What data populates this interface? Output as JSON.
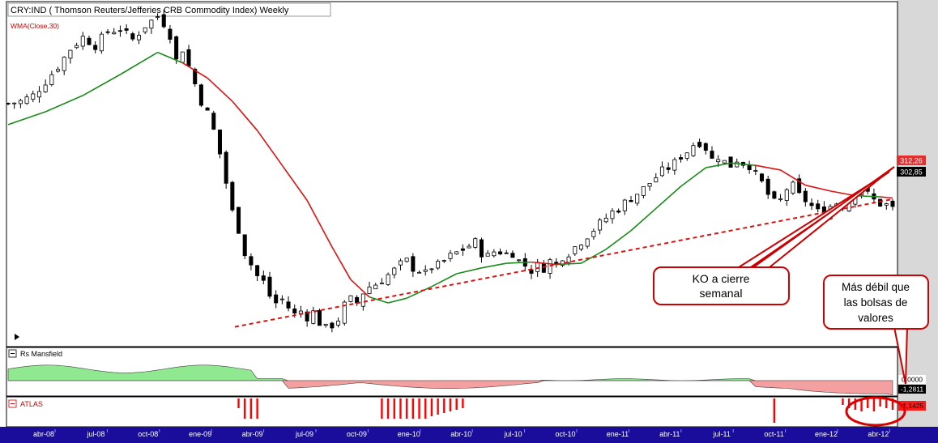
{
  "chart_data": {
    "type": "candlestick",
    "title": "CRY:IND ( Thomson Reuters/Jefferies CRB Commodity Index) Weekly",
    "indicator_label": "WMA(Close,30)",
    "ylim": [
      190,
      475
    ],
    "x_tick_labels": [
      "abr-08",
      "jul-08",
      "oct-08",
      "ene-09",
      "abr-09",
      "jul-09",
      "oct-09",
      "ene-10",
      "abr-10",
      "jul-10",
      "oct-10",
      "ene-11",
      "abr-11",
      "jul-11",
      "oct-11",
      "ene-12",
      "abr-12"
    ],
    "price_tags": {
      "wma": "312,26",
      "last": "302,85"
    },
    "close_series": [
      [
        0,
        393
      ],
      [
        2,
        395
      ],
      [
        4,
        400
      ],
      [
        6,
        412
      ],
      [
        8,
        425
      ],
      [
        10,
        440
      ],
      [
        12,
        450
      ],
      [
        14,
        443
      ],
      [
        16,
        455
      ],
      [
        18,
        457
      ],
      [
        20,
        448
      ],
      [
        22,
        460
      ],
      [
        24,
        468
      ],
      [
        25,
        462
      ],
      [
        26,
        452
      ],
      [
        27,
        430
      ],
      [
        28,
        440
      ],
      [
        29,
        425
      ],
      [
        30,
        410
      ],
      [
        31,
        395
      ],
      [
        32,
        385
      ],
      [
        33,
        370
      ],
      [
        34,
        350
      ],
      [
        35,
        325
      ],
      [
        36,
        300
      ],
      [
        37,
        285
      ],
      [
        38,
        265
      ],
      [
        39,
        255
      ],
      [
        40,
        245
      ],
      [
        41,
        240
      ],
      [
        42,
        228
      ],
      [
        43,
        222
      ],
      [
        44,
        225
      ],
      [
        45,
        218
      ],
      [
        46,
        212
      ],
      [
        47,
        215
      ],
      [
        48,
        210
      ],
      [
        49,
        214
      ],
      [
        50,
        205
      ],
      [
        51,
        200
      ],
      [
        52,
        203
      ],
      [
        53,
        208
      ],
      [
        54,
        220
      ],
      [
        55,
        225
      ],
      [
        56,
        222
      ],
      [
        57,
        231
      ],
      [
        58,
        236
      ],
      [
        59,
        238
      ],
      [
        60,
        242
      ],
      [
        61,
        246
      ],
      [
        62,
        250
      ],
      [
        63,
        255
      ],
      [
        64,
        258
      ],
      [
        65,
        252
      ],
      [
        66,
        250
      ],
      [
        67,
        247
      ],
      [
        68,
        253
      ],
      [
        69,
        254
      ],
      [
        70,
        258
      ],
      [
        71,
        262
      ],
      [
        72,
        265
      ],
      [
        73,
        268
      ],
      [
        74,
        271
      ],
      [
        75,
        274
      ],
      [
        76,
        265
      ],
      [
        77,
        262
      ],
      [
        78,
        266
      ],
      [
        79,
        266
      ],
      [
        80,
        264
      ],
      [
        81,
        265
      ],
      [
        82,
        258
      ],
      [
        83,
        254
      ],
      [
        84,
        250
      ],
      [
        85,
        254
      ],
      [
        86,
        252
      ],
      [
        87,
        258
      ],
      [
        88,
        255
      ],
      [
        89,
        262
      ],
      [
        90,
        265
      ],
      [
        91,
        270
      ],
      [
        92,
        275
      ],
      [
        93,
        280
      ],
      [
        94,
        285
      ],
      [
        95,
        290
      ],
      [
        96,
        295
      ],
      [
        97,
        300
      ],
      [
        98,
        303
      ],
      [
        99,
        308
      ],
      [
        100,
        312
      ],
      [
        101,
        316
      ],
      [
        102,
        320
      ],
      [
        103,
        325
      ],
      [
        104,
        330
      ],
      [
        105,
        335
      ],
      [
        106,
        338
      ],
      [
        107,
        342
      ],
      [
        108,
        348
      ],
      [
        109,
        352
      ],
      [
        110,
        358
      ],
      [
        111,
        360
      ],
      [
        112,
        355
      ],
      [
        113,
        345
      ],
      [
        114,
        348
      ],
      [
        115,
        343
      ],
      [
        116,
        340
      ],
      [
        117,
        345
      ],
      [
        118,
        342
      ],
      [
        119,
        340
      ],
      [
        120,
        332
      ],
      [
        121,
        325
      ],
      [
        122,
        315
      ],
      [
        123,
        308
      ],
      [
        124,
        310
      ],
      [
        125,
        320
      ],
      [
        126,
        322
      ],
      [
        127,
        314
      ],
      [
        128,
        310
      ],
      [
        129,
        305
      ],
      [
        130,
        300
      ],
      [
        131,
        298
      ],
      [
        132,
        305
      ],
      [
        133,
        308
      ],
      [
        134,
        306
      ],
      [
        135,
        310
      ],
      [
        136,
        318
      ],
      [
        137,
        320
      ],
      [
        138,
        315
      ],
      [
        139,
        310
      ],
      [
        140,
        307
      ],
      [
        141,
        306
      ],
      [
        142,
        303
      ]
    ],
    "wma_series": [
      [
        0,
        375
      ],
      [
        6,
        386
      ],
      [
        12,
        400
      ],
      [
        18,
        418
      ],
      [
        24,
        437
      ],
      [
        28,
        428
      ],
      [
        32,
        415
      ],
      [
        36,
        395
      ],
      [
        40,
        370
      ],
      [
        44,
        340
      ],
      [
        48,
        310
      ],
      [
        52,
        270
      ],
      [
        55,
        242
      ],
      [
        58,
        227
      ],
      [
        61,
        222
      ],
      [
        64,
        226
      ],
      [
        68,
        236
      ],
      [
        72,
        247
      ],
      [
        76,
        252
      ],
      [
        80,
        256
      ],
      [
        84,
        257
      ],
      [
        88,
        255
      ],
      [
        92,
        256
      ],
      [
        96,
        268
      ],
      [
        100,
        284
      ],
      [
        104,
        303
      ],
      [
        108,
        322
      ],
      [
        112,
        338
      ],
      [
        116,
        342
      ],
      [
        120,
        340
      ],
      [
        124,
        336
      ],
      [
        128,
        323
      ],
      [
        132,
        318
      ],
      [
        136,
        314
      ],
      [
        140,
        313
      ],
      [
        142,
        312
      ]
    ],
    "trendline": [
      [
        0,
        200
      ],
      [
        142,
        311
      ]
    ],
    "annotations": [
      {
        "text_lines": [
          "KO a cierre",
          "semanal"
        ]
      },
      {
        "text_lines": [
          "Más débil que",
          "las bolsas de",
          "valores"
        ]
      }
    ],
    "panels": {
      "mansfield": {
        "label": "Rs Mansfield",
        "ylim": [
          -1.5,
          2.0
        ],
        "zero_label": "0,0000",
        "last_label": "-1,2811"
      },
      "atlas": {
        "label": "ATLAS",
        "last_label": "-1,1425"
      }
    }
  }
}
